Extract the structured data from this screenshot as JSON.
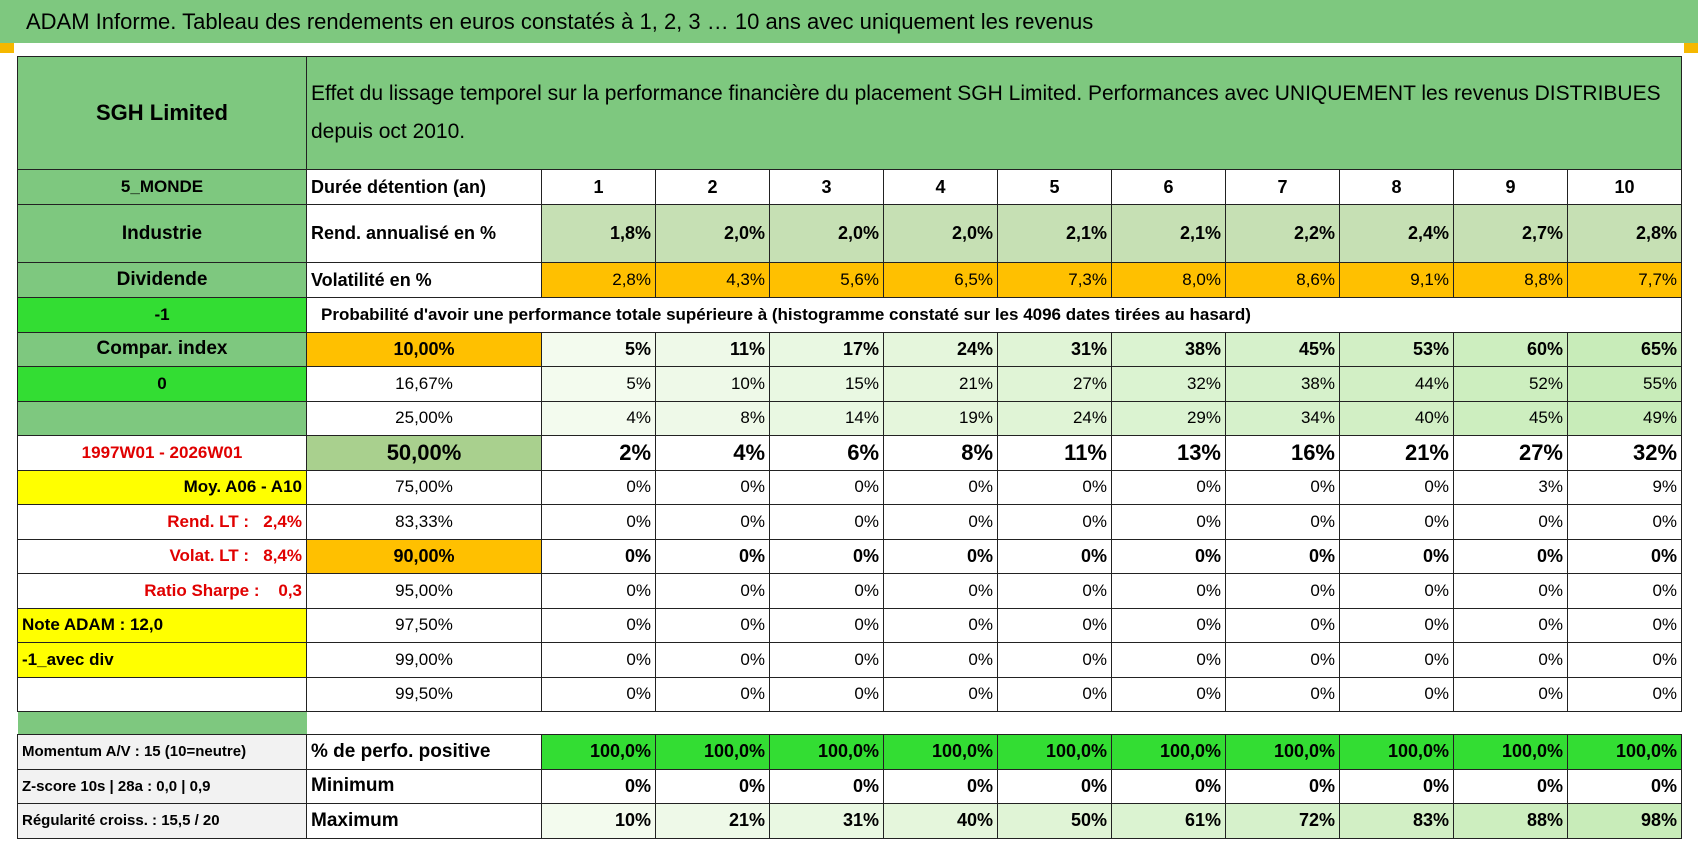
{
  "header": {
    "title": "ADAM Informe. Tableau des rendements en euros constatés à 1, 2, 3 … 10 ans avec uniquement les revenus"
  },
  "table": {
    "name": "SGH Limited",
    "description": "Effet du lissage temporel sur la performance financière du placement SGH Limited. Performances avec UNIQUEMENT les revenus DISTRIBUES depuis oct 2010.",
    "rows": [
      {
        "side": "5_MONDE",
        "label": "Durée détention (an)",
        "values": [
          1,
          2,
          3,
          4,
          5,
          6,
          7,
          8,
          9,
          10
        ]
      },
      {
        "side": "Industrie",
        "label": "Rend. annualisé en %",
        "values": [
          "1,8%",
          "2,0%",
          "2,0%",
          "2,0%",
          "2,1%",
          "2,1%",
          "2,2%",
          "2,4%",
          "2,7%",
          "2,8%"
        ]
      },
      {
        "side": "Dividende",
        "label": "Volatilité en %",
        "values": [
          "2,8%",
          "4,3%",
          "5,6%",
          "6,5%",
          "7,3%",
          "8,0%",
          "8,6%",
          "9,1%",
          "8,8%",
          "7,7%"
        ]
      },
      {
        "side": "-1",
        "label": "Probabilité d'avoir une performance totale supérieure à (histogramme constaté sur les 4096 dates tirées au hasard)"
      },
      {
        "side": "Compar. index",
        "label": "10,00%",
        "values": [
          "5%",
          "11%",
          "17%",
          "24%",
          "31%",
          "38%",
          "45%",
          "53%",
          "60%",
          "65%"
        ]
      },
      {
        "side": "0",
        "label": "16,67%",
        "values": [
          "5%",
          "10%",
          "15%",
          "21%",
          "27%",
          "32%",
          "38%",
          "44%",
          "52%",
          "55%"
        ]
      },
      {
        "label": "25,00%",
        "values": [
          "4%",
          "8%",
          "14%",
          "19%",
          "24%",
          "29%",
          "34%",
          "40%",
          "45%",
          "49%"
        ]
      },
      {
        "side": "1997W01 - 2026W01",
        "label": "50,00%",
        "values": [
          "2%",
          "4%",
          "6%",
          "8%",
          "11%",
          "13%",
          "16%",
          "21%",
          "27%",
          "32%"
        ]
      },
      {
        "side": "Moy. A06 - A10",
        "label": "75,00%",
        "values": [
          "0%",
          "0%",
          "0%",
          "0%",
          "0%",
          "0%",
          "0%",
          "0%",
          "3%",
          "9%"
        ]
      },
      {
        "side": "Rend. LT :   2,4%",
        "label": "83,33%",
        "values": [
          "0%",
          "0%",
          "0%",
          "0%",
          "0%",
          "0%",
          "0%",
          "0%",
          "0%",
          "0%"
        ]
      },
      {
        "side": "Volat. LT :   8,4%",
        "label": "90,00%",
        "values": [
          "0%",
          "0%",
          "0%",
          "0%",
          "0%",
          "0%",
          "0%",
          "0%",
          "0%",
          "0%"
        ]
      },
      {
        "side": "Ratio Sharpe :    0,3",
        "label": "95,00%",
        "values": [
          "0%",
          "0%",
          "0%",
          "0%",
          "0%",
          "0%",
          "0%",
          "0%",
          "0%",
          "0%"
        ]
      },
      {
        "side": "Note ADAM : 12,0",
        "label": "97,50%",
        "values": [
          "0%",
          "0%",
          "0%",
          "0%",
          "0%",
          "0%",
          "0%",
          "0%",
          "0%",
          "0%"
        ]
      },
      {
        "side": "-1_avec div",
        "label": "99,00%",
        "values": [
          "0%",
          "0%",
          "0%",
          "0%",
          "0%",
          "0%",
          "0%",
          "0%",
          "0%",
          "0%"
        ]
      },
      {
        "label": "99,50%",
        "values": [
          "0%",
          "0%",
          "0%",
          "0%",
          "0%",
          "0%",
          "0%",
          "0%",
          "0%",
          "0%"
        ]
      }
    ],
    "summary_rows": [
      {
        "side": "Momentum A/V : 15 (10=neutre)",
        "label": "% de perfo. positive",
        "values": [
          "100,0%",
          "100,0%",
          "100,0%",
          "100,0%",
          "100,0%",
          "100,0%",
          "100,0%",
          "100,0%",
          "100,0%",
          "100,0%"
        ]
      },
      {
        "side": "Z-score 10s | 28a : 0,0 | 0,9",
        "label": "Minimum",
        "values": [
          "0%",
          "0%",
          "0%",
          "0%",
          "0%",
          "0%",
          "0%",
          "0%",
          "0%",
          "0%"
        ]
      },
      {
        "side": "Régularité croiss. : 15,5 / 20",
        "label": "Maximum",
        "values": [
          "10%",
          "21%",
          "31%",
          "40%",
          "50%",
          "61%",
          "72%",
          "83%",
          "88%",
          "98%"
        ]
      }
    ]
  }
}
